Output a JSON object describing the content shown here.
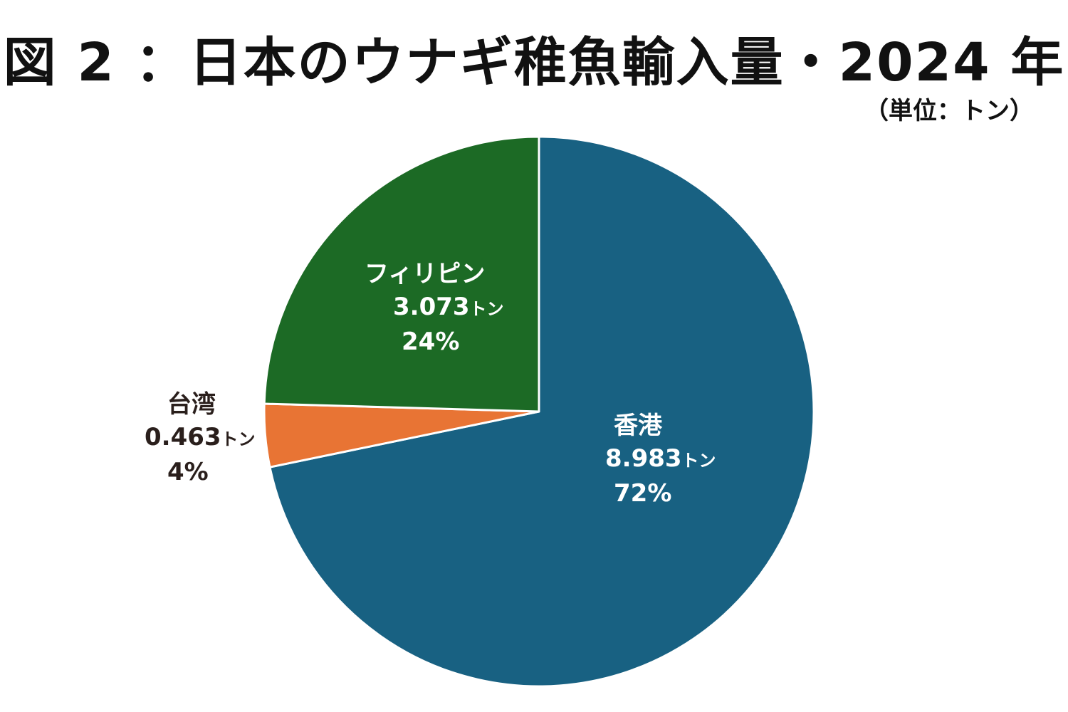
{
  "title": "図 2 ：日本のウナギ稚魚輸入量・2024 年",
  "unit_note": "（単位：トン）",
  "chart_data": {
    "type": "pie",
    "title": "図 2 ：日本のウナギ稚魚輸入量・2024 年",
    "unit": "トン",
    "slices": [
      {
        "label": "香港",
        "value": 8.983,
        "value_text": "8.983",
        "unit": "トン",
        "percent": "72%",
        "color": "#186182"
      },
      {
        "label": "台湾",
        "value": 0.463,
        "value_text": "0.463",
        "unit": "トン",
        "percent": "4%",
        "color": "#e87434"
      },
      {
        "label": "フィリピン",
        "value": 3.073,
        "value_text": "3.073",
        "unit": "トン",
        "percent": "24%",
        "color": "#1c6a25"
      }
    ]
  }
}
